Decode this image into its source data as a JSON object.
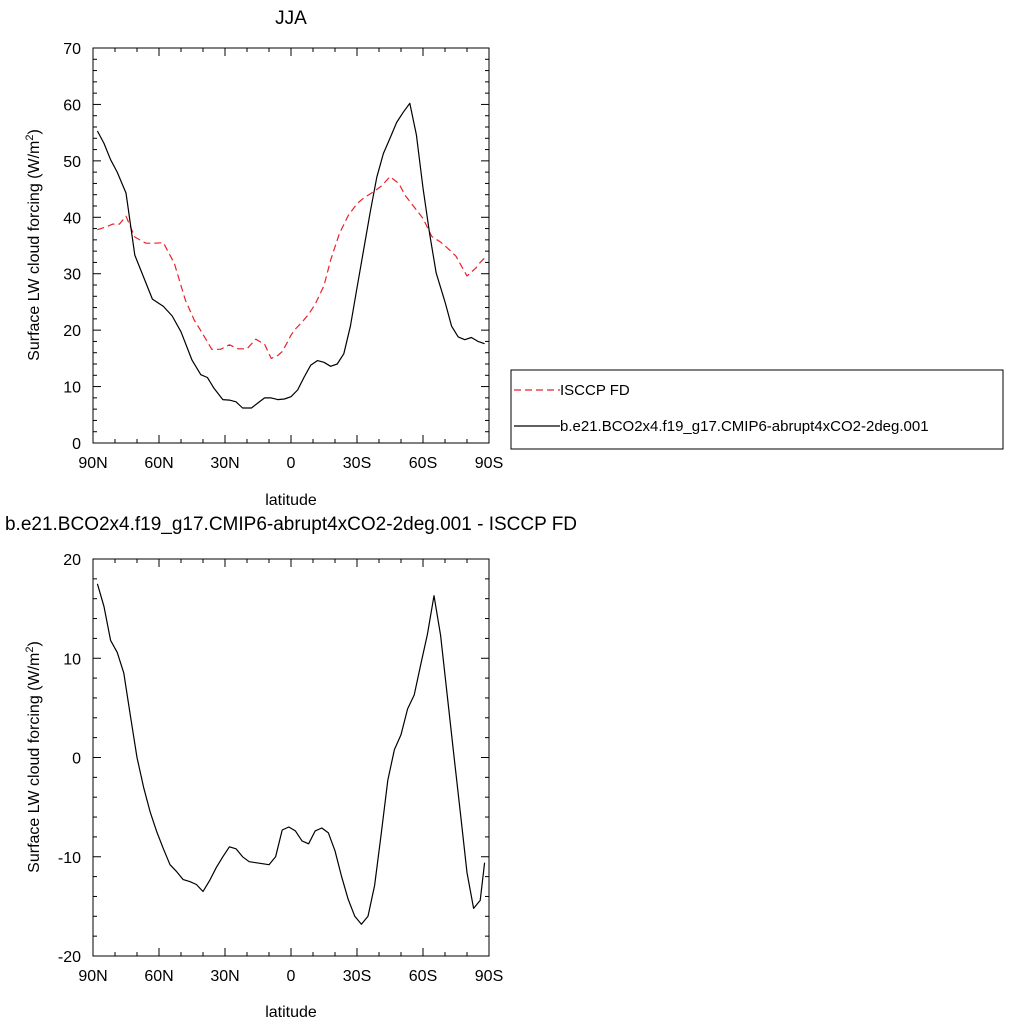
{
  "chart_data": [
    {
      "type": "line",
      "title": "JJA",
      "xlabel": "latitude",
      "ylabel": "Surface LW cloud forcing (W/m",
      "ylabel_superscript": "2",
      "ylabel_suffix": ")",
      "xlim": [
        90,
        -90
      ],
      "ylim": [
        0,
        70
      ],
      "xticks": [
        {
          "value": 90,
          "label": "90N"
        },
        {
          "value": 60,
          "label": "60N"
        },
        {
          "value": 30,
          "label": "30N"
        },
        {
          "value": 0,
          "label": "0"
        },
        {
          "value": -30,
          "label": "30S"
        },
        {
          "value": -60,
          "label": "60S"
        },
        {
          "value": -90,
          "label": "90S"
        }
      ],
      "yticks": [
        0,
        10,
        20,
        30,
        40,
        50,
        60,
        70
      ],
      "legend_position": "right",
      "series": [
        {
          "name": "ISCCP FD",
          "color": "#e8232a",
          "dash": "dashed",
          "x": [
            88,
            84,
            81,
            78,
            75,
            71,
            66,
            62,
            58,
            53,
            48,
            44,
            41,
            36,
            32,
            28,
            24,
            20,
            16,
            12,
            9,
            6,
            4,
            2,
            0,
            -2,
            -5,
            -8,
            -11,
            -15,
            -18,
            -22,
            -26,
            -30,
            -33,
            -37,
            -41,
            -45,
            -49,
            -52,
            -56,
            -60,
            -64,
            -68,
            -71,
            -75,
            -80,
            -84,
            -86,
            -88
          ],
          "y": [
            37.8,
            38.3,
            38.8,
            38.8,
            40.2,
            36.5,
            35.4,
            35.4,
            35.5,
            31.8,
            25.3,
            21.8,
            19.9,
            16.6,
            16.6,
            17.4,
            16.7,
            16.7,
            18.4,
            17.5,
            15.0,
            15.5,
            16.2,
            17.6,
            19.1,
            20.2,
            21.4,
            22.8,
            24.6,
            27.9,
            32.4,
            37.1,
            40.3,
            42.4,
            43.4,
            44.4,
            45.5,
            47.2,
            46.0,
            43.8,
            41.8,
            39.8,
            36.6,
            35.6,
            34.6,
            33.1,
            29.6,
            31.0,
            32.0,
            32.8
          ]
        },
        {
          "name": "b.e21.BCO2x4.f19_g17.CMIP6-abrupt4xCO2-2deg.001",
          "color": "#000000",
          "dash": "solid",
          "x": [
            88,
            85,
            82,
            79,
            75,
            71,
            67,
            63,
            58,
            54,
            50,
            45,
            41,
            38,
            35,
            31,
            28,
            25,
            22,
            18,
            15,
            12,
            9,
            6,
            3,
            0,
            -3,
            -6,
            -9,
            -12,
            -15,
            -18,
            -21,
            -24,
            -27,
            -30,
            -33,
            -36,
            -39,
            -42,
            -45,
            -48,
            -51,
            -54,
            -57,
            -60,
            -63,
            -66,
            -70,
            -73,
            -76,
            -79,
            -82,
            -85,
            -88
          ],
          "y": [
            55.3,
            53.1,
            50.2,
            48.0,
            44.3,
            33.3,
            29.4,
            25.5,
            24.2,
            22.5,
            19.7,
            14.7,
            12.1,
            11.6,
            9.7,
            7.7,
            7.6,
            7.3,
            6.2,
            6.2,
            7.1,
            8.0,
            8.0,
            7.7,
            7.8,
            8.2,
            9.4,
            11.7,
            13.8,
            14.6,
            14.3,
            13.6,
            14.0,
            15.8,
            20.7,
            27.5,
            34.2,
            40.9,
            47.1,
            51.3,
            54.0,
            56.8,
            58.6,
            60.2,
            54.6,
            45.2,
            37.1,
            30.1,
            25.0,
            20.7,
            18.8,
            18.3,
            18.7,
            18.0,
            17.6
          ]
        }
      ]
    },
    {
      "type": "line",
      "title": "b.e21.BCO2x4.f19_g17.CMIP6-abrupt4xCO2-2deg.001 - ISCCP FD",
      "xlabel": "latitude",
      "ylabel": "Surface LW cloud forcing (W/m",
      "ylabel_superscript": "2",
      "ylabel_suffix": ")",
      "xlim": [
        90,
        -90
      ],
      "ylim": [
        -20,
        20
      ],
      "xticks": [
        {
          "value": 90,
          "label": "90N"
        },
        {
          "value": 60,
          "label": "60N"
        },
        {
          "value": 30,
          "label": "30N"
        },
        {
          "value": 0,
          "label": "0"
        },
        {
          "value": -30,
          "label": "30S"
        },
        {
          "value": -60,
          "label": "60S"
        },
        {
          "value": -90,
          "label": "90S"
        }
      ],
      "yticks": [
        -20,
        -10,
        0,
        10,
        20
      ],
      "series": [
        {
          "color": "#000000",
          "dash": "solid",
          "x": [
            88,
            85,
            82,
            79,
            76,
            73,
            70,
            67,
            64,
            61,
            58,
            55,
            52,
            49,
            46,
            43,
            40,
            37,
            34,
            31,
            28,
            25,
            22,
            19,
            16,
            13,
            10,
            7,
            4,
            1,
            -2,
            -5,
            -8,
            -11,
            -14,
            -17,
            -20,
            -23,
            -26,
            -29,
            -32,
            -35,
            -38,
            -41,
            -44,
            -47,
            -50,
            -53,
            -56,
            -59,
            -62,
            -65,
            -68,
            -71,
            -74,
            -77,
            -80,
            -83,
            -86,
            -88
          ],
          "y": [
            17.5,
            15.2,
            11.8,
            10.6,
            8.5,
            4.2,
            0.0,
            -3.0,
            -5.5,
            -7.5,
            -9.2,
            -10.8,
            -11.5,
            -12.3,
            -12.5,
            -12.8,
            -13.5,
            -12.4,
            -11.1,
            -10.0,
            -9.0,
            -9.2,
            -10.0,
            -10.5,
            -10.6,
            -10.7,
            -10.8,
            -10.0,
            -7.3,
            -7.0,
            -7.4,
            -8.4,
            -8.7,
            -7.4,
            -7.1,
            -7.6,
            -9.4,
            -12.0,
            -14.3,
            -16.0,
            -16.8,
            -16.0,
            -12.9,
            -7.7,
            -2.3,
            0.8,
            2.3,
            4.9,
            6.3,
            9.4,
            12.4,
            16.3,
            12.3,
            6.3,
            0.3,
            -5.6,
            -11.6,
            -15.2,
            -14.4,
            -10.6
          ]
        }
      ]
    }
  ]
}
